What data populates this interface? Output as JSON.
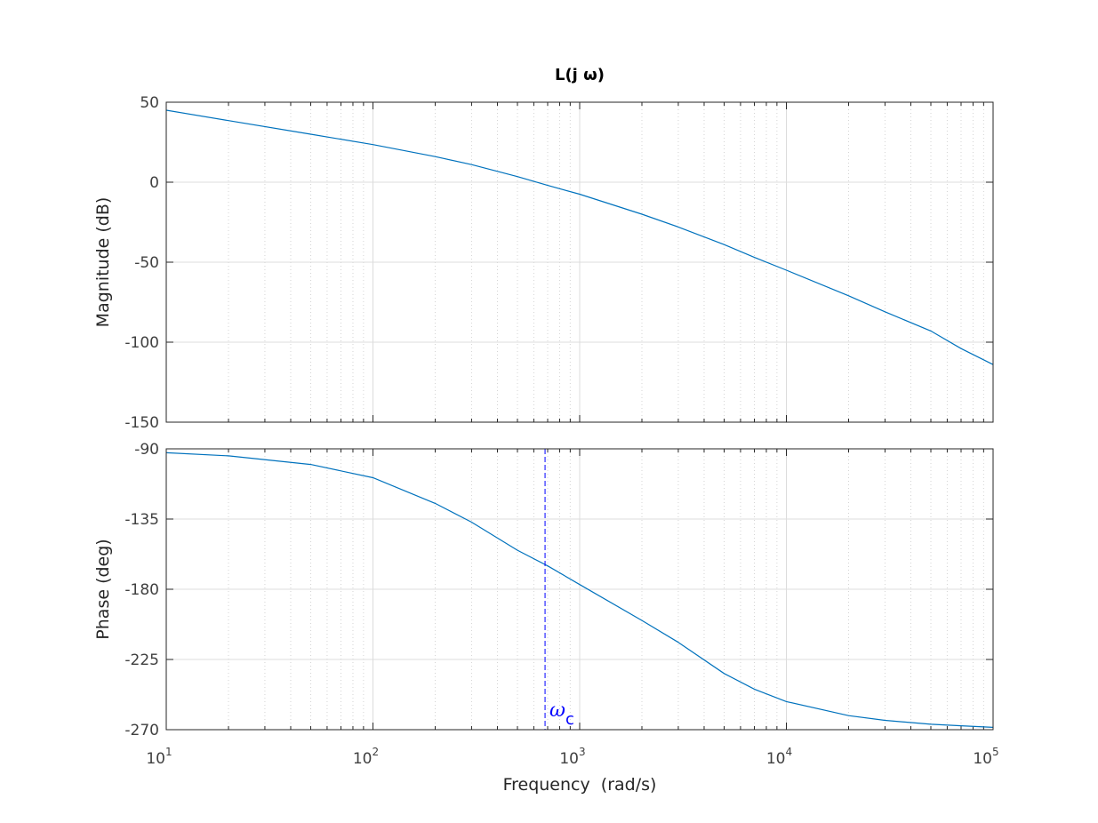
{
  "chart_data": [
    {
      "type": "line",
      "title": "L(j ω)",
      "xlabel": "",
      "ylabel": "Magnitude (dB)",
      "xscale": "log",
      "xlim": [
        10,
        100000
      ],
      "ylim": [
        -150,
        50
      ],
      "x_ticks": [
        {
          "base": "10",
          "exp": "1"
        },
        {
          "base": "10",
          "exp": "2"
        },
        {
          "base": "10",
          "exp": "3"
        },
        {
          "base": "10",
          "exp": "4"
        },
        {
          "base": "10",
          "exp": "5"
        }
      ],
      "y_ticks": [
        "50",
        "0",
        "-50",
        "-100",
        "-150"
      ],
      "grid": true,
      "color": "#0072bd",
      "series": [
        {
          "x": [
            10,
            20,
            50,
            100,
            200,
            300,
            500,
            700,
            1000,
            2000,
            3000,
            5000,
            7000,
            10000,
            20000,
            30000,
            50000,
            70000,
            100000
          ],
          "values": [
            45,
            38.5,
            30,
            23.5,
            16,
            11,
            3.5,
            -2,
            -7.5,
            -20,
            -28,
            -39,
            -47,
            -55,
            -71,
            -81,
            -93,
            -104,
            -114
          ]
        }
      ]
    },
    {
      "type": "line",
      "xlabel": "Frequency  (rad/s)",
      "ylabel": "Phase (deg)",
      "xscale": "log",
      "xlim": [
        10,
        100000
      ],
      "ylim": [
        -270,
        -90
      ],
      "x_ticks": [
        {
          "base": "10",
          "exp": "1"
        },
        {
          "base": "10",
          "exp": "2"
        },
        {
          "base": "10",
          "exp": "3"
        },
        {
          "base": "10",
          "exp": "4"
        },
        {
          "base": "10",
          "exp": "5"
        }
      ],
      "y_ticks": [
        "-90",
        "-135",
        "-180",
        "-225",
        "-270"
      ],
      "grid": true,
      "color": "#0072bd",
      "series": [
        {
          "x": [
            10,
            20,
            50,
            100,
            200,
            300,
            500,
            700,
            1000,
            2000,
            3000,
            5000,
            7000,
            10000,
            20000,
            30000,
            50000,
            70000,
            100000
          ],
          "values": [
            -92.5,
            -94.5,
            -100,
            -108.5,
            -125,
            -137,
            -155,
            -165,
            -177,
            -200,
            -214,
            -234,
            -244,
            -252,
            -261,
            -264,
            -266.5,
            -267.5,
            -268.5
          ]
        }
      ],
      "annotations": [
        {
          "type": "vline",
          "x": 680,
          "style": "dashed",
          "color": "#0000ff",
          "label": "ω",
          "label_sub": "c"
        }
      ]
    }
  ]
}
